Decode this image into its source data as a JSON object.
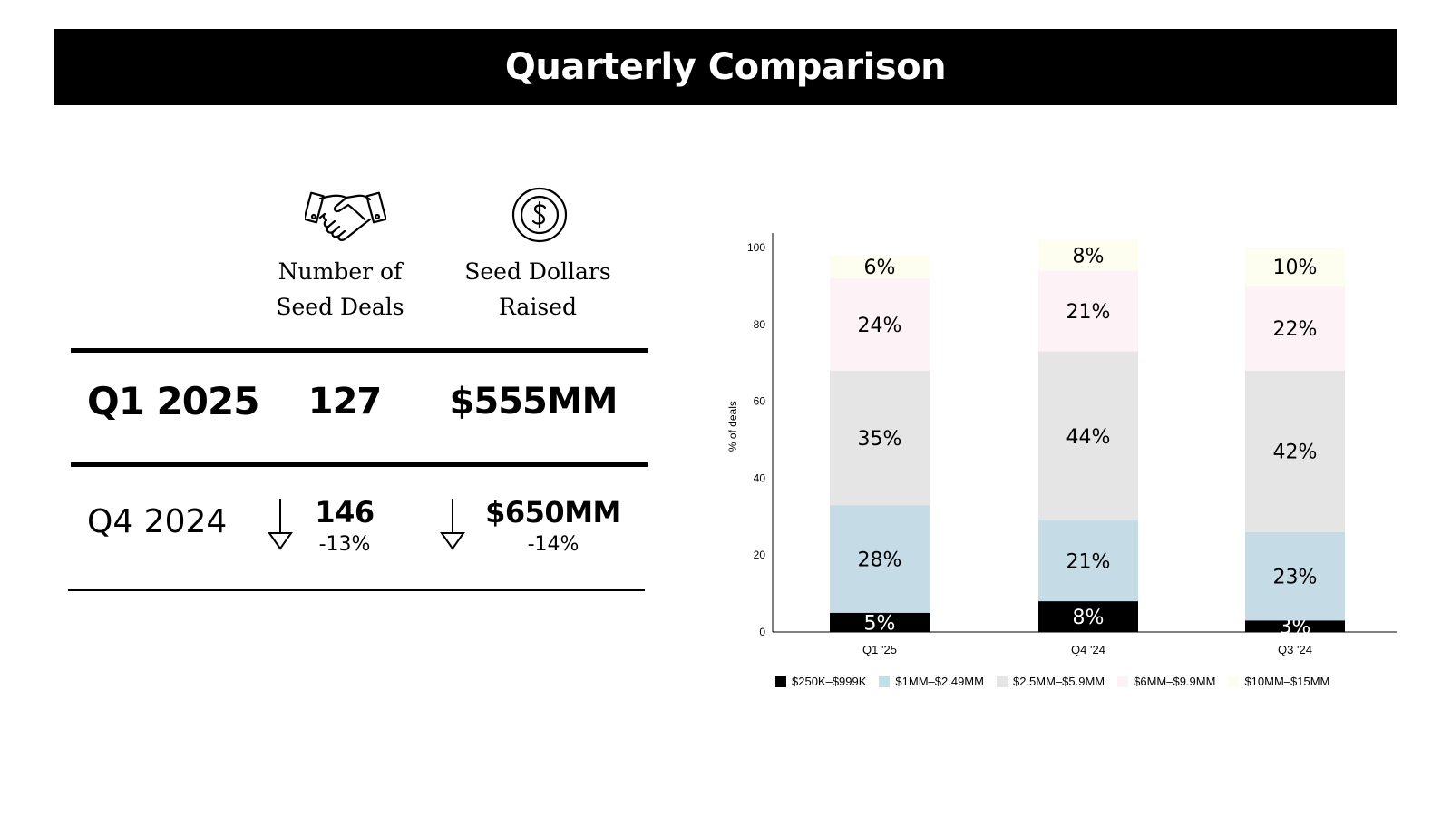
{
  "title": "Quarterly Comparison",
  "headers": {
    "deals": [
      "Number of",
      "Seed Deals"
    ],
    "dollars": [
      "Seed Dollars",
      "Raised"
    ]
  },
  "icons": {
    "deals": "handshake-icon",
    "dollars": "dollar-coin-icon",
    "down": "down-arrow-icon"
  },
  "current": {
    "label": "Q1 2025",
    "deals": "127",
    "dollars": "$555MM"
  },
  "previous": {
    "label": "Q4 2024",
    "deals": "146",
    "deals_change": "-13%",
    "dollars": "$650MM",
    "dollars_change": "-14%"
  },
  "chart_data": {
    "type": "bar",
    "stacked": true,
    "categories": [
      "Q1 '25",
      "Q4 '24",
      "Q3 '24"
    ],
    "ylabel": "% of deals",
    "xlabel": "",
    "ylim": [
      0,
      100
    ],
    "yticks": [
      0,
      20,
      40,
      60,
      80,
      100
    ],
    "series": [
      {
        "name": "$250K–$999K",
        "color": "#000000",
        "label_color": "#ffffff",
        "values": [
          5,
          8,
          3
        ],
        "labels": [
          "5%",
          "8%",
          "3%"
        ]
      },
      {
        "name": "$1MM–$2.49MM",
        "color": "#c5dce7",
        "label_color": "#000000",
        "values": [
          28,
          21,
          23
        ],
        "labels": [
          "28%",
          "21%",
          "23%"
        ]
      },
      {
        "name": "$2.5MM–$5.9MM",
        "color": "#e5e5e5",
        "label_color": "#000000",
        "values": [
          35,
          44,
          42
        ],
        "labels": [
          "35%",
          "44%",
          "42%"
        ]
      },
      {
        "name": "$6MM–$9.9MM",
        "color": "#fdf3f6",
        "label_color": "#000000",
        "values": [
          24,
          21,
          22
        ],
        "labels": [
          "24%",
          "21%",
          "22%"
        ]
      },
      {
        "name": "$10MM–$15MM",
        "color": "#fefef0",
        "label_color": "#000000",
        "values": [
          6,
          8,
          10
        ],
        "labels": [
          "6%",
          "8%",
          "10%"
        ]
      }
    ],
    "legend_position": "bottom"
  }
}
